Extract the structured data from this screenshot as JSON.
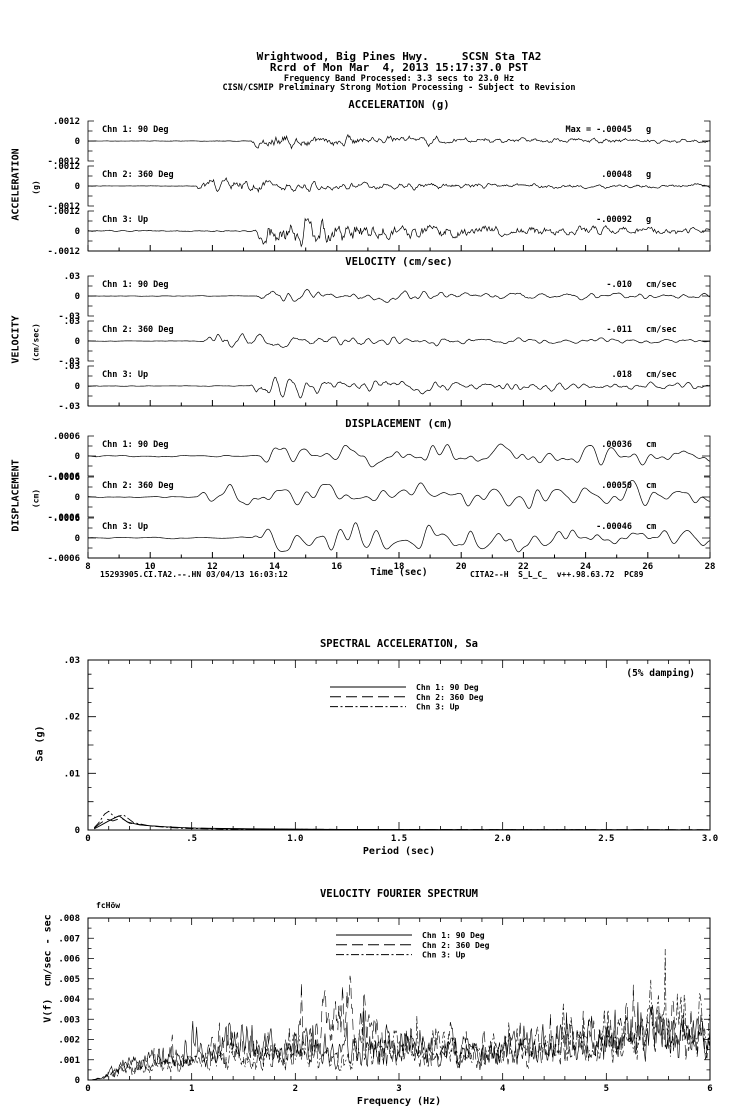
{
  "header": {
    "line1": "Wrightwood, Big Pines Hwy.     SCSN Sta TA2",
    "line2": "Rcrd of Mon Mar  4, 2013 15:17:37.0 PST",
    "line3": "Frequency Band Processed: 3.3 secs to 23.0 Hz",
    "line4": "CISN/CSMIP Preliminary Strong Motion Processing - Subject to Revision"
  },
  "footer": {
    "left": "15293905.CI.TA2.--.HN 03/04/13 16:03:12",
    "center": "Time (sec)",
    "right": "CITA2--H  S_L_C_  v++.98.63.72  PC89"
  },
  "chart_data": [
    {
      "id": "acceleration",
      "type": "line",
      "title": "ACCELERATION (g)",
      "ylabel": "ACCELERATION",
      "yunits": "(g)",
      "unit": "g",
      "ylim": [
        -0.0012,
        0.0012
      ],
      "ytick_labels": [
        ".0012",
        "0",
        "-.0012"
      ],
      "xlim": [
        8,
        28
      ],
      "channels": [
        {
          "label": "Chn 1: 90 Deg",
          "max_prefix": "Max =",
          "max": "-.00045",
          "peak": -0.00045,
          "onset_sec": 13.2
        },
        {
          "label": "Chn 2: 360 Deg",
          "max": ".00048",
          "peak": 0.00048,
          "onset_sec": 11.4
        },
        {
          "label": "Chn 3: Up",
          "max": "-.00092",
          "peak": -0.00092,
          "onset_sec": 13.3
        }
      ]
    },
    {
      "id": "velocity",
      "type": "line",
      "title": "VELOCITY (cm/sec)",
      "ylabel": "VELOCITY",
      "yunits": "(cm/sec)",
      "unit": "cm/sec",
      "ylim": [
        -0.03,
        0.03
      ],
      "ytick_labels": [
        ".03",
        "0",
        "-.03"
      ],
      "xlim": [
        8,
        28
      ],
      "channels": [
        {
          "label": "Chn 1: 90 Deg",
          "max": "-.010",
          "peak": -0.01,
          "onset_sec": 13.3
        },
        {
          "label": "Chn 2: 360 Deg",
          "max": "-.011",
          "peak": -0.011,
          "onset_sec": 11.6
        },
        {
          "label": "Chn 3: Up",
          "max": ".018",
          "peak": 0.018,
          "onset_sec": 13.2
        }
      ]
    },
    {
      "id": "displacement",
      "type": "line",
      "title": "DISPLACEMENT (cm)",
      "ylabel": "DISPLACEMENT",
      "yunits": "(cm)",
      "unit": "cm",
      "ylim": [
        -0.0006,
        0.0006
      ],
      "ytick_labels": [
        ".0006",
        "0",
        "-.0006"
      ],
      "xlim": [
        8,
        28
      ],
      "xtick_labels": [
        "8",
        "10",
        "12",
        "14",
        "16",
        "18",
        "20",
        "22",
        "24",
        "26",
        "28"
      ],
      "xlabel": "Time (sec)",
      "channels": [
        {
          "label": "Chn 1: 90 Deg",
          "max": ".00036",
          "peak": 0.00036,
          "onset_sec": 13.5
        },
        {
          "label": "Chn 2: 360 Deg",
          "max": ".00050",
          "peak": 0.0005,
          "onset_sec": 11.5
        },
        {
          "label": "Chn 3: Up",
          "max": "-.00046",
          "peak": -0.00046,
          "onset_sec": 13.3
        }
      ]
    },
    {
      "id": "spectral_acceleration",
      "type": "line",
      "title": "SPECTRAL ACCELERATION, Sa",
      "xlabel": "Period (sec)",
      "ylabel": "Sa (g)",
      "annotation": "(5% damping)",
      "xlim": [
        0,
        3
      ],
      "ylim": [
        0,
        0.03
      ],
      "xtick_labels": [
        "0",
        ".5",
        "1.0",
        "1.5",
        "2.0",
        "2.5",
        "3.0"
      ],
      "ytick_labels": [
        "0",
        ".01",
        ".02",
        ".03"
      ],
      "legend_position": "top-center",
      "series": [
        {
          "name": "Chn 1: 90 Deg",
          "dash": "solid",
          "points": [
            [
              0.03,
              0.0002
            ],
            [
              0.05,
              0.0006
            ],
            [
              0.08,
              0.0012
            ],
            [
              0.11,
              0.0018
            ],
            [
              0.15,
              0.0025
            ],
            [
              0.19,
              0.0014
            ],
            [
              0.25,
              0.0009
            ],
            [
              0.35,
              0.0006
            ],
            [
              0.5,
              0.00035
            ],
            [
              0.8,
              0.0002
            ],
            [
              1.2,
              0.0001
            ],
            [
              2.0,
              6e-05
            ],
            [
              3.0,
              4e-05
            ]
          ]
        },
        {
          "name": "Chn 2: 360 Deg",
          "dash": "long-dash",
          "points": [
            [
              0.03,
              0.0003
            ],
            [
              0.06,
              0.0012
            ],
            [
              0.09,
              0.0019
            ],
            [
              0.12,
              0.0016
            ],
            [
              0.16,
              0.0021
            ],
            [
              0.2,
              0.0012
            ],
            [
              0.28,
              0.0008
            ],
            [
              0.4,
              0.0005
            ],
            [
              0.6,
              0.00025
            ],
            [
              1.0,
              0.00012
            ],
            [
              1.8,
              7e-05
            ],
            [
              3.0,
              4e-05
            ]
          ]
        },
        {
          "name": "Chn 3: Up",
          "dash": "dash-dot",
          "points": [
            [
              0.03,
              0.0004
            ],
            [
              0.05,
              0.0012
            ],
            [
              0.08,
              0.0028
            ],
            [
              0.1,
              0.0033
            ],
            [
              0.13,
              0.0022
            ],
            [
              0.17,
              0.0027
            ],
            [
              0.22,
              0.0013
            ],
            [
              0.3,
              0.0007
            ],
            [
              0.45,
              0.0003
            ],
            [
              0.7,
              0.00015
            ],
            [
              1.5,
              6e-05
            ],
            [
              3.0,
              3e-05
            ]
          ]
        }
      ]
    },
    {
      "id": "velocity_fourier_spectrum",
      "type": "line",
      "title": "VELOCITY FOURIER SPECTRUM",
      "xlabel": "Frequency (Hz)",
      "ylabel": "V(f)  cm/sec - sec",
      "annotation": "fcHöw",
      "xlim": [
        0,
        6
      ],
      "ylim": [
        0,
        0.008
      ],
      "xtick_labels": [
        "0",
        "1",
        "2",
        "3",
        "4",
        "5",
        "6"
      ],
      "ytick_labels": [
        "0",
        ".001",
        ".002",
        ".003",
        ".004",
        ".005",
        ".006",
        ".007",
        ".008"
      ],
      "legend_position": "top-center",
      "series": [
        {
          "name": "Chn 1: 90 Deg",
          "dash": "solid",
          "envelope": [
            [
              0,
              0
            ],
            [
              0.3,
              0.0008
            ],
            [
              1,
              0.0012
            ],
            [
              1.5,
              0.0019
            ],
            [
              2,
              0.0015
            ],
            [
              2.5,
              0.0016
            ],
            [
              3,
              0.0018
            ],
            [
              3.5,
              0.0015
            ],
            [
              4,
              0.0016
            ],
            [
              4.5,
              0.0018
            ],
            [
              5,
              0.002
            ],
            [
              5.5,
              0.0022
            ],
            [
              6,
              0.002
            ]
          ]
        },
        {
          "name": "Chn 2: 360 Deg",
          "dash": "long-dash",
          "envelope": [
            [
              0,
              0
            ],
            [
              0.3,
              0.0006
            ],
            [
              1,
              0.001
            ],
            [
              1.4,
              0.0022
            ],
            [
              1.8,
              0.0012
            ],
            [
              2.4,
              0.0031
            ],
            [
              2.6,
              0.0028
            ],
            [
              3,
              0.0015
            ],
            [
              3.6,
              0.0018
            ],
            [
              4,
              0.0014
            ],
            [
              4.5,
              0.0016
            ],
            [
              5,
              0.0018
            ],
            [
              5.6,
              0.0026
            ],
            [
              6,
              0.002
            ]
          ]
        },
        {
          "name": "Chn 3: Up",
          "dash": "dash-dot",
          "envelope": [
            [
              0,
              0
            ],
            [
              0.3,
              0.0005
            ],
            [
              1,
              0.0009
            ],
            [
              1.5,
              0.0012
            ],
            [
              2,
              0.0013
            ],
            [
              2.5,
              0.0014
            ],
            [
              3,
              0.0016
            ],
            [
              3.5,
              0.0014
            ],
            [
              4,
              0.0015
            ],
            [
              4.5,
              0.0017
            ],
            [
              5,
              0.002
            ],
            [
              5.5,
              0.0029
            ],
            [
              6,
              0.0022
            ]
          ]
        }
      ]
    }
  ]
}
